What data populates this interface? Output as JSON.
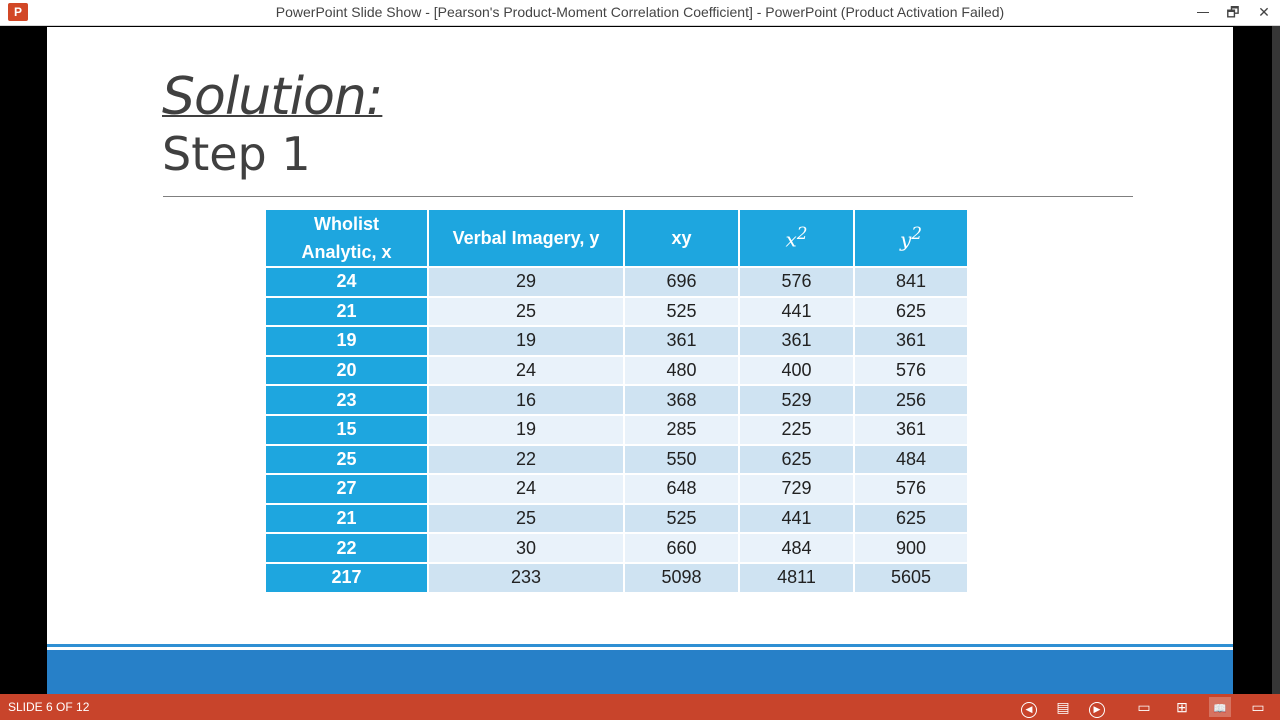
{
  "window": {
    "title": "PowerPoint Slide Show - [Pearson's Product-Moment Correlation Coefficient] - PowerPoint (Product Activation Failed)",
    "app_icon_letter": "P",
    "minimize": "",
    "restore": "🗗",
    "close": "✕"
  },
  "slide": {
    "title": "Solution:",
    "subtitle": "Step 1",
    "table": {
      "headers": {
        "x_line1": "Wholist",
        "x_line2": "Analytic, x",
        "y": "Verbal Imagery, y",
        "xy": "xy",
        "x2_base": "x",
        "x2_exp": "2",
        "y2_base": "y",
        "y2_exp": "2"
      },
      "rows": [
        [
          "24",
          "29",
          "696",
          "576",
          "841"
        ],
        [
          "21",
          "25",
          "525",
          "441",
          "625"
        ],
        [
          "19",
          "19",
          "361",
          "361",
          "361"
        ],
        [
          "20",
          "24",
          "480",
          "400",
          "576"
        ],
        [
          "23",
          "16",
          "368",
          "529",
          "256"
        ],
        [
          "15",
          "19",
          "285",
          "225",
          "361"
        ],
        [
          "25",
          "22",
          "550",
          "625",
          "484"
        ],
        [
          "27",
          "24",
          "648",
          "729",
          "576"
        ],
        [
          "21",
          "25",
          "525",
          "441",
          "625"
        ],
        [
          "22",
          "30",
          "660",
          "484",
          "900"
        ],
        [
          "217",
          "233",
          "5098",
          "4811",
          "5605"
        ]
      ]
    }
  },
  "statusbar": {
    "slide_counter": "SLIDE 6 OF 12",
    "prev_icon": "◀",
    "notes_icon": "▤",
    "next_icon": "▶",
    "normal_icon": "▭",
    "sorter_icon": "⊞",
    "reading_icon": "📖",
    "slideshow_icon": "▭"
  },
  "colors": {
    "header_blue": "#1ea6df",
    "row_odd": "#cfe3f2",
    "row_even": "#e9f2fa",
    "statusbar": "#c8442b",
    "footer_band": "#2780c8"
  }
}
